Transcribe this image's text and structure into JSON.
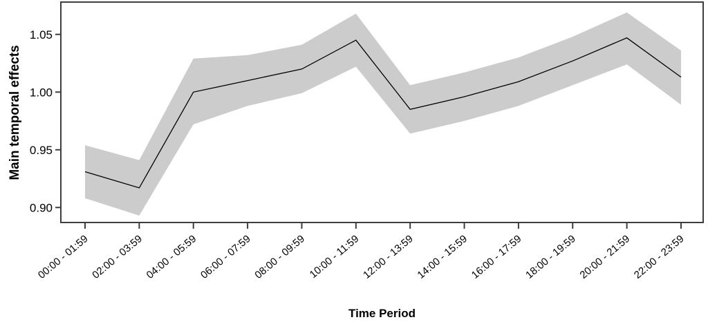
{
  "chart_data": {
    "type": "line",
    "title": "",
    "xlabel": "Time Period",
    "ylabel": "Main temporal effects",
    "categories": [
      "00:00 - 01:59",
      "02:00 - 03:59",
      "04:00 - 05:59",
      "06:00 - 07:59",
      "08:00 - 09:59",
      "10:00 - 11:59",
      "12:00 - 13:59",
      "14:00 - 15:59",
      "16:00 - 17:59",
      "18:00 - 19:59",
      "20:00 - 21:59",
      "22:00 - 23:59"
    ],
    "series": [
      {
        "name": "main-temporal-effect-mean",
        "values": [
          0.931,
          0.917,
          1.0,
          1.01,
          1.02,
          1.045,
          0.985,
          0.996,
          1.009,
          1.027,
          1.047,
          1.013
        ]
      },
      {
        "name": "confidence-band-lower",
        "values": [
          0.908,
          0.893,
          0.972,
          0.988,
          0.999,
          1.022,
          0.964,
          0.975,
          0.988,
          1.006,
          1.024,
          0.989
        ]
      },
      {
        "name": "confidence-band-upper",
        "values": [
          0.954,
          0.941,
          1.029,
          1.032,
          1.041,
          1.068,
          1.006,
          1.017,
          1.03,
          1.048,
          1.069,
          1.036
        ]
      }
    ],
    "y_ticks": [
      "0.90",
      "0.95",
      "1.00",
      "1.05"
    ],
    "ylim": [
      0.887,
      1.078
    ],
    "grid": false,
    "legend": "none",
    "band_style": "filled-confidence-interval",
    "colors": {
      "line": "#000000",
      "band": "#cccccc",
      "border": "#3d3d3d",
      "text": "#000000",
      "background": "#ffffff"
    }
  }
}
